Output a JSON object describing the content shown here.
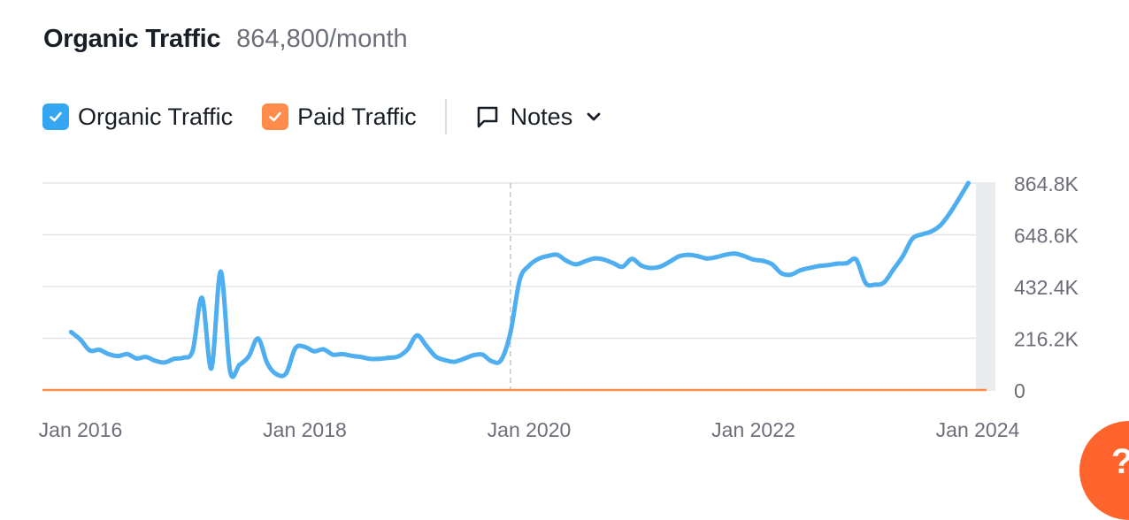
{
  "header": {
    "title": "Organic Traffic",
    "value": "864,800/month"
  },
  "legend": {
    "items": [
      {
        "label": "Organic Traffic",
        "color": "#35a7f2",
        "checked": true
      },
      {
        "label": "Paid Traffic",
        "color": "#ff8c4b",
        "checked": true
      }
    ],
    "notes_label": "Notes"
  },
  "help": {
    "label": "?"
  },
  "chart_data": {
    "type": "line",
    "x_ticks": [
      "Jan 2016",
      "Jan 2018",
      "Jan 2020",
      "Jan 2022",
      "Jan 2024"
    ],
    "y_ticks": [
      "864.8K",
      "648.6K",
      "432.4K",
      "216.2K",
      "0"
    ],
    "ylim": [
      0,
      864800
    ],
    "grid": true,
    "series": [
      {
        "name": "Organic Traffic",
        "color": "#4eaef0",
        "points": [
          [
            "2015-12",
            242000
          ],
          [
            "2016-01",
            210000
          ],
          [
            "2016-02",
            165000
          ],
          [
            "2016-03",
            168000
          ],
          [
            "2016-04",
            150000
          ],
          [
            "2016-05",
            142000
          ],
          [
            "2016-06",
            150000
          ],
          [
            "2016-07",
            132000
          ],
          [
            "2016-08",
            138000
          ],
          [
            "2016-09",
            122000
          ],
          [
            "2016-10",
            115000
          ],
          [
            "2016-11",
            130000
          ],
          [
            "2016-12",
            135000
          ],
          [
            "2017-01",
            165000
          ],
          [
            "2017-02",
            385000
          ],
          [
            "2017-03",
            90000
          ],
          [
            "2017-04",
            495000
          ],
          [
            "2017-05",
            80000
          ],
          [
            "2017-06",
            105000
          ],
          [
            "2017-07",
            140000
          ],
          [
            "2017-08",
            215000
          ],
          [
            "2017-09",
            110000
          ],
          [
            "2017-10",
            65000
          ],
          [
            "2017-11",
            70000
          ],
          [
            "2017-12",
            175000
          ],
          [
            "2018-01",
            180000
          ],
          [
            "2018-02",
            162000
          ],
          [
            "2018-03",
            170000
          ],
          [
            "2018-04",
            148000
          ],
          [
            "2018-05",
            150000
          ],
          [
            "2018-06",
            143000
          ],
          [
            "2018-07",
            138000
          ],
          [
            "2018-08",
            130000
          ],
          [
            "2018-09",
            130000
          ],
          [
            "2018-10",
            135000
          ],
          [
            "2018-11",
            140000
          ],
          [
            "2018-12",
            170000
          ],
          [
            "2019-01",
            228000
          ],
          [
            "2019-02",
            185000
          ],
          [
            "2019-03",
            140000
          ],
          [
            "2019-04",
            125000
          ],
          [
            "2019-05",
            118000
          ],
          [
            "2019-06",
            130000
          ],
          [
            "2019-07",
            145000
          ],
          [
            "2019-08",
            148000
          ],
          [
            "2019-09",
            120000
          ],
          [
            "2019-10",
            125000
          ],
          [
            "2019-11",
            240000
          ],
          [
            "2019-12",
            460000
          ],
          [
            "2020-01",
            520000
          ],
          [
            "2020-02",
            548000
          ],
          [
            "2020-03",
            560000
          ],
          [
            "2020-04",
            565000
          ],
          [
            "2020-05",
            540000
          ],
          [
            "2020-06",
            525000
          ],
          [
            "2020-07",
            538000
          ],
          [
            "2020-08",
            550000
          ],
          [
            "2020-09",
            545000
          ],
          [
            "2020-10",
            530000
          ],
          [
            "2020-11",
            515000
          ],
          [
            "2020-12",
            548000
          ],
          [
            "2021-01",
            520000
          ],
          [
            "2021-02",
            510000
          ],
          [
            "2021-03",
            515000
          ],
          [
            "2021-04",
            535000
          ],
          [
            "2021-05",
            558000
          ],
          [
            "2021-06",
            565000
          ],
          [
            "2021-07",
            560000
          ],
          [
            "2021-08",
            550000
          ],
          [
            "2021-09",
            555000
          ],
          [
            "2021-10",
            565000
          ],
          [
            "2021-11",
            570000
          ],
          [
            "2021-12",
            560000
          ],
          [
            "2022-01",
            545000
          ],
          [
            "2022-02",
            540000
          ],
          [
            "2022-03",
            525000
          ],
          [
            "2022-04",
            488000
          ],
          [
            "2022-05",
            482000
          ],
          [
            "2022-06",
            500000
          ],
          [
            "2022-07",
            510000
          ],
          [
            "2022-08",
            518000
          ],
          [
            "2022-09",
            522000
          ],
          [
            "2022-10",
            528000
          ],
          [
            "2022-11",
            530000
          ],
          [
            "2022-12",
            545000
          ],
          [
            "2023-01",
            447000
          ],
          [
            "2023-02",
            440000
          ],
          [
            "2023-03",
            450000
          ],
          [
            "2023-04",
            505000
          ],
          [
            "2023-05",
            560000
          ],
          [
            "2023-06",
            632000
          ],
          [
            "2023-07",
            650000
          ],
          [
            "2023-08",
            662000
          ],
          [
            "2023-09",
            688000
          ],
          [
            "2023-10",
            738000
          ],
          [
            "2023-11",
            800000
          ],
          [
            "2023-12",
            864800
          ]
        ]
      },
      {
        "name": "Paid Traffic",
        "color": "#ff8c4b",
        "points": [
          [
            "2015-12",
            0
          ],
          [
            "2023-12",
            0
          ]
        ]
      }
    ],
    "annotation_date": "2019-11"
  }
}
